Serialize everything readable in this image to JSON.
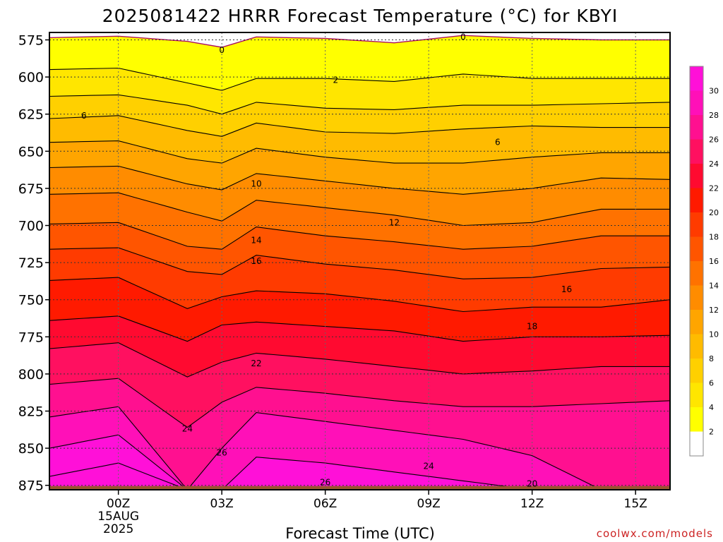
{
  "chart_data": {
    "type": "heatmap",
    "title": "2025081422 HRRR Forecast Temperature (°C) for KBYI",
    "xlabel": "Forecast Time (UTC)",
    "ylabel": "",
    "credit": "coolwx.com/models",
    "x_ticks": [
      "00Z",
      "03Z",
      "06Z",
      "09Z",
      "12Z",
      "15Z"
    ],
    "x_tick_sub": [
      "15AUG",
      "2025"
    ],
    "y_ticks": [
      575,
      600,
      625,
      650,
      675,
      700,
      725,
      750,
      775,
      800,
      825,
      850,
      875
    ],
    "ylim": [
      878,
      570
    ],
    "xlim_hours": [
      -2,
      16
    ],
    "grid": true,
    "colorbar": {
      "ticks": [
        2,
        4,
        6,
        8,
        10,
        12,
        14,
        16,
        18,
        20,
        22,
        24,
        26,
        28,
        30
      ],
      "levels": [
        0,
        2,
        4,
        6,
        8,
        10,
        12,
        14,
        16,
        18,
        20,
        22,
        24,
        26,
        28,
        30,
        32
      ],
      "colors": [
        "#ffffff",
        "#ffff00",
        "#ffe600",
        "#ffd000",
        "#ffbb00",
        "#ffa500",
        "#ff8c00",
        "#ff7200",
        "#ff5500",
        "#ff3b00",
        "#ff1a00",
        "#ff0a30",
        "#ff1060",
        "#ff1090",
        "#ff10b8",
        "#ff10d8"
      ]
    },
    "contour_labels": [
      {
        "text": "0",
        "hour": 3.0,
        "p": 582
      },
      {
        "text": "0",
        "hour": 10.0,
        "p": 573
      },
      {
        "text": "2",
        "hour": 6.3,
        "p": 602
      },
      {
        "text": "6",
        "hour": -1.0,
        "p": 626
      },
      {
        "text": "6",
        "hour": 11.0,
        "p": 644
      },
      {
        "text": "10",
        "hour": 4.0,
        "p": 672
      },
      {
        "text": "12",
        "hour": 8.0,
        "p": 698
      },
      {
        "text": "14",
        "hour": 4.0,
        "p": 710
      },
      {
        "text": "16",
        "hour": 4.0,
        "p": 724
      },
      {
        "text": "16",
        "hour": 13.0,
        "p": 743
      },
      {
        "text": "18",
        "hour": 12.0,
        "p": 768
      },
      {
        "text": "22",
        "hour": 4.0,
        "p": 793
      },
      {
        "text": "24",
        "hour": 2.0,
        "p": 837
      },
      {
        "text": "26",
        "hour": 3.0,
        "p": 853
      },
      {
        "text": "26",
        "hour": 6.0,
        "p": 873
      },
      {
        "text": "24",
        "hour": 9.0,
        "p": 862
      },
      {
        "text": "20",
        "hour": 12.0,
        "p": 874
      }
    ]
  }
}
